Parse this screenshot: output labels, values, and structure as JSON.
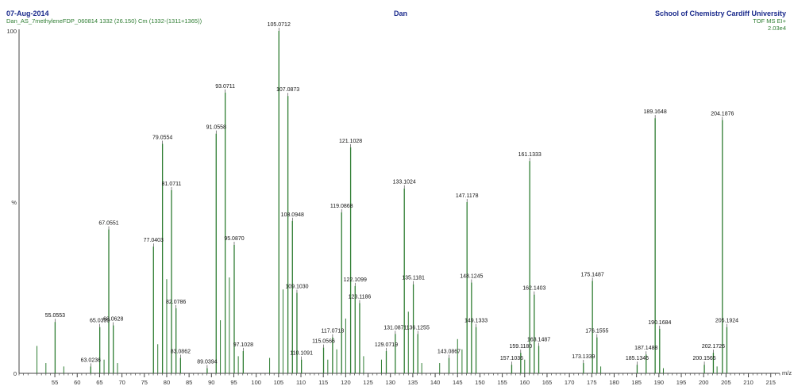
{
  "header": {
    "date": "07-Aug-2014",
    "sample": "Dan_AS_7methyleneFDP_060814 1332 (26.150) Cm (1332-(1311+1365))",
    "user": "Dan",
    "institution": "School of Chemistry Cardiff University",
    "mode": "TOF MS EI+",
    "intensity": "2.03e4"
  },
  "chart_data": {
    "type": "bar",
    "xlim": [
      47,
      217
    ],
    "ylim": [
      0,
      100
    ],
    "y_tick_labels": [
      "100",
      "%",
      "0"
    ],
    "x_unit": "m/z",
    "x_ticks": [
      55,
      60,
      65,
      70,
      75,
      80,
      85,
      90,
      95,
      100,
      105,
      110,
      115,
      120,
      125,
      130,
      135,
      140,
      145,
      150,
      155,
      160,
      165,
      170,
      175,
      180,
      185,
      190,
      195,
      200,
      205,
      210,
      215
    ],
    "peaks": [
      {
        "mz": 55.0553,
        "y": 15,
        "label": "55.0553"
      },
      {
        "mz": 63.0236,
        "y": 2,
        "label": "63.0236"
      },
      {
        "mz": 65.0399,
        "y": 13.5,
        "label": "65.0399"
      },
      {
        "mz": 67.0551,
        "y": 42,
        "label": "67.0551"
      },
      {
        "mz": 68.0628,
        "y": 14,
        "label": "68.0628"
      },
      {
        "mz": 77.0403,
        "y": 37,
        "label": "77.0403"
      },
      {
        "mz": 79.0554,
        "y": 67,
        "label": "79.0554"
      },
      {
        "mz": 81.0711,
        "y": 53.5,
        "label": "81.0711"
      },
      {
        "mz": 82.0786,
        "y": 19,
        "label": "82.0786"
      },
      {
        "mz": 83.0862,
        "y": 4.5,
        "label": "83.0862"
      },
      {
        "mz": 89.0394,
        "y": 1.5,
        "label": "89.0394"
      },
      {
        "mz": 91.0558,
        "y": 70,
        "label": "91.0558"
      },
      {
        "mz": 93.0711,
        "y": 82,
        "label": "93.0711"
      },
      {
        "mz": 95.087,
        "y": 37.5,
        "label": "95.0870"
      },
      {
        "mz": 97.1028,
        "y": 6.5,
        "label": "97.1028"
      },
      {
        "mz": 105.0712,
        "y": 100,
        "label": "105.0712"
      },
      {
        "mz": 107.0873,
        "y": 81,
        "label": "107.0873"
      },
      {
        "mz": 108.0948,
        "y": 44.5,
        "label": "108.0948"
      },
      {
        "mz": 109.103,
        "y": 23.5,
        "label": "109.1030"
      },
      {
        "mz": 110.1091,
        "y": 4,
        "label": "110.1091"
      },
      {
        "mz": 115.0566,
        "y": 7.5,
        "label": "115.0566"
      },
      {
        "mz": 117.0718,
        "y": 10.5,
        "label": "117.0718"
      },
      {
        "mz": 119.0868,
        "y": 47,
        "label": "119.0868"
      },
      {
        "mz": 121.1028,
        "y": 66,
        "label": "121.1028"
      },
      {
        "mz": 122.1099,
        "y": 25.5,
        "label": "122.1099"
      },
      {
        "mz": 123.1186,
        "y": 20.5,
        "label": "123.1186"
      },
      {
        "mz": 129.0719,
        "y": 6.5,
        "label": "129.0719"
      },
      {
        "mz": 131.0871,
        "y": 11.5,
        "label": "131.0871"
      },
      {
        "mz": 133.1024,
        "y": 54,
        "label": "133.1024"
      },
      {
        "mz": 135.1181,
        "y": 26,
        "label": "135.1181"
      },
      {
        "mz": 136.1255,
        "y": 11.5,
        "label": "136.1255"
      },
      {
        "mz": 143.0867,
        "y": 4.5,
        "label": "143.0867"
      },
      {
        "mz": 147.1178,
        "y": 50,
        "label": "147.1178"
      },
      {
        "mz": 148.1245,
        "y": 26.5,
        "label": "148.1245"
      },
      {
        "mz": 149.1333,
        "y": 13.5,
        "label": "149.1333"
      },
      {
        "mz": 157.1036,
        "y": 2.5,
        "label": "157.1036"
      },
      {
        "mz": 159.118,
        "y": 6,
        "label": "159.1180"
      },
      {
        "mz": 161.1333,
        "y": 62,
        "label": "161.1333"
      },
      {
        "mz": 162.1403,
        "y": 23,
        "label": "162.1403"
      },
      {
        "mz": 163.1487,
        "y": 8,
        "label": "163.1487"
      },
      {
        "mz": 173.1339,
        "y": 3,
        "label": "173.1339"
      },
      {
        "mz": 175.1487,
        "y": 27,
        "label": "175.1487"
      },
      {
        "mz": 176.1555,
        "y": 10.5,
        "label": "176.1555"
      },
      {
        "mz": 185.1346,
        "y": 2.5,
        "label": "185.1346"
      },
      {
        "mz": 187.1488,
        "y": 5.5,
        "label": "187.1488"
      },
      {
        "mz": 189.1648,
        "y": 74.5,
        "label": "189.1648"
      },
      {
        "mz": 190.1684,
        "y": 13,
        "label": "190.1684"
      },
      {
        "mz": 200.1565,
        "y": 2.5,
        "label": "200.1565"
      },
      {
        "mz": 202.1726,
        "y": 6,
        "label": "202.1726"
      },
      {
        "mz": 204.1876,
        "y": 74,
        "label": "204.1876"
      },
      {
        "mz": 205.1924,
        "y": 13.5,
        "label": "205.1924"
      }
    ],
    "minor_peaks": [
      {
        "mz": 51.0,
        "y": 8
      },
      {
        "mz": 53.0,
        "y": 3
      },
      {
        "mz": 57.0,
        "y": 2
      },
      {
        "mz": 66.0,
        "y": 4
      },
      {
        "mz": 69.0,
        "y": 3
      },
      {
        "mz": 78.0,
        "y": 8.5
      },
      {
        "mz": 80.0,
        "y": 27.5
      },
      {
        "mz": 92.0,
        "y": 15.5
      },
      {
        "mz": 94.0,
        "y": 28
      },
      {
        "mz": 96.0,
        "y": 5
      },
      {
        "mz": 103.0,
        "y": 4.5
      },
      {
        "mz": 106.0,
        "y": 24.5
      },
      {
        "mz": 116.0,
        "y": 4
      },
      {
        "mz": 118.0,
        "y": 7
      },
      {
        "mz": 120.0,
        "y": 16
      },
      {
        "mz": 124.0,
        "y": 5
      },
      {
        "mz": 128.0,
        "y": 4
      },
      {
        "mz": 134.0,
        "y": 18
      },
      {
        "mz": 137.0,
        "y": 3
      },
      {
        "mz": 141.0,
        "y": 3
      },
      {
        "mz": 145.0,
        "y": 10
      },
      {
        "mz": 146.0,
        "y": 7
      },
      {
        "mz": 160.0,
        "y": 4
      },
      {
        "mz": 177.0,
        "y": 2
      },
      {
        "mz": 191.0,
        "y": 1.5
      },
      {
        "mz": 203.0,
        "y": 2
      }
    ],
    "colors": {
      "peaks": "#2e7d32",
      "axis": "#444444",
      "labels": "#111111"
    }
  }
}
